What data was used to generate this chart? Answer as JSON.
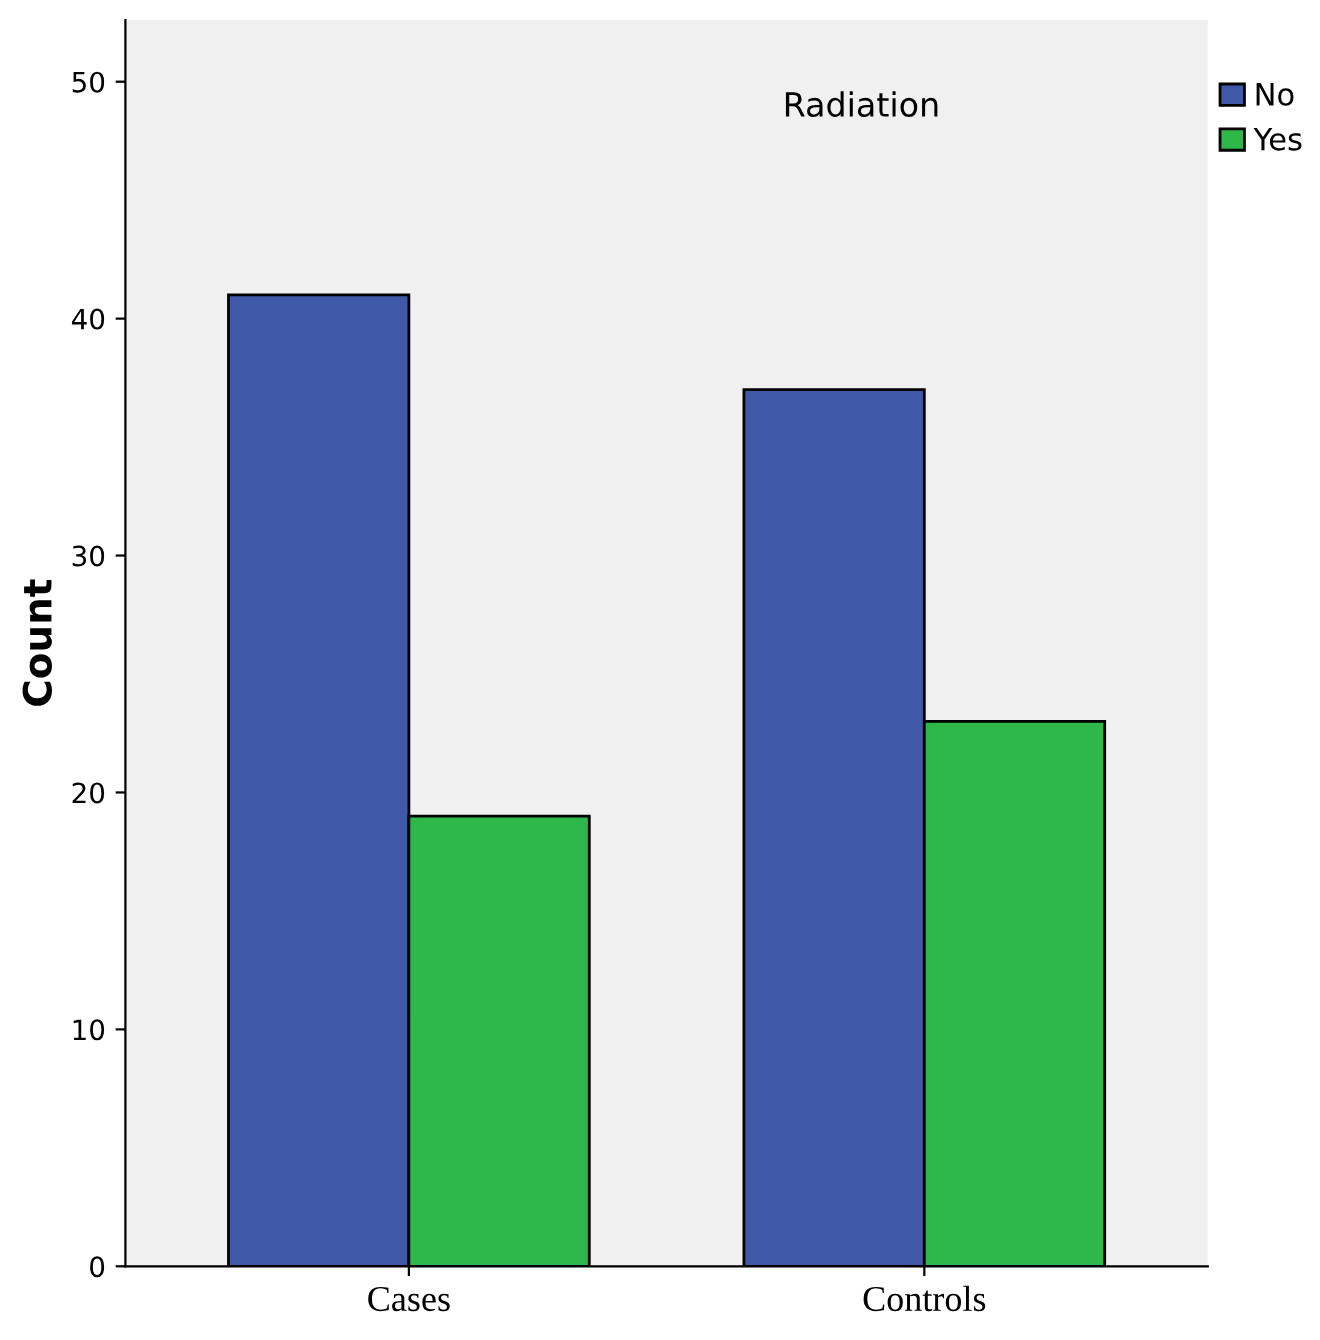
{
  "chart_data": {
    "type": "bar",
    "ylabel": "Count",
    "legend_title": "Radiation",
    "categories": [
      "Cases",
      "Controls"
    ],
    "series": [
      {
        "name": "No",
        "color": "#3f58a8",
        "values": [
          41,
          37
        ]
      },
      {
        "name": "Yes",
        "color": "#2eb84a",
        "values": [
          19,
          23
        ]
      }
    ],
    "ylim": [
      0,
      52.6
    ],
    "yticks": [
      0,
      10,
      20,
      30,
      40,
      50
    ],
    "grid": false,
    "legend": "top right"
  }
}
